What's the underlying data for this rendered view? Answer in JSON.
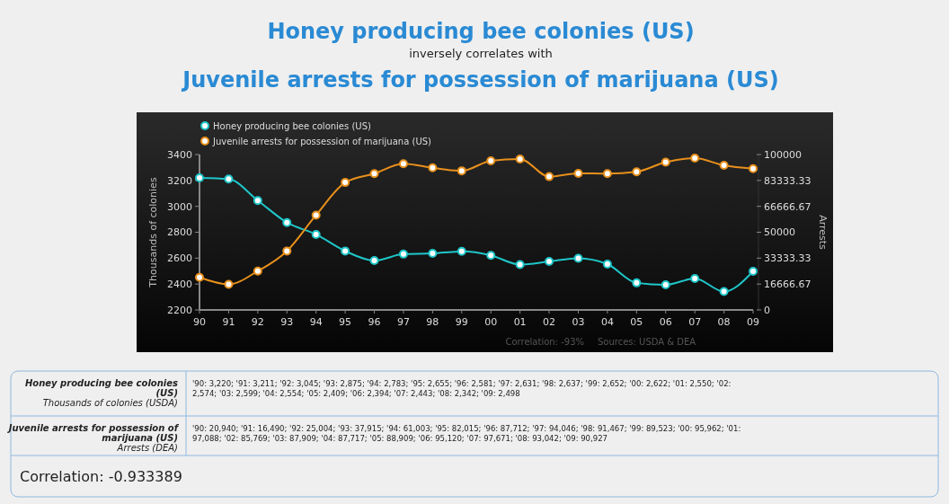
{
  "chart_data": {
    "type": "line",
    "title": "Honey producing bee colonies (US)",
    "subtitle": "inversely correlates with",
    "ylabel": "Thousands of colonies",
    "y2label": "Arrests",
    "categories": [
      "90",
      "91",
      "92",
      "93",
      "94",
      "95",
      "96",
      "97",
      "98",
      "99",
      "00",
      "01",
      "02",
      "03",
      "04",
      "05",
      "06",
      "07",
      "08",
      "09"
    ],
    "series": [
      {
        "name": "Honey producing bee colonies (US)",
        "color": "#1fc6c9",
        "values": [
          3220,
          3211,
          3045,
          2875,
          2783,
          2655,
          2581,
          2631,
          2637,
          2652,
          2622,
          2550,
          2574,
          2599,
          2554,
          2409,
          2394,
          2443,
          2342,
          2498
        ]
      },
      {
        "name": "Juvenile arrests for possession of marijuana (US)",
        "color": "#e8901c",
        "axis": "y2",
        "values": [
          20940,
          16490,
          25004,
          37915,
          61003,
          82015,
          87712,
          94046,
          91467,
          89523,
          95962,
          97088,
          85769,
          87909,
          87717,
          88909,
          95120,
          97671,
          93042,
          90927
        ]
      }
    ],
    "ylim": [
      2200,
      3400
    ],
    "yticks": [
      2200,
      2400,
      2600,
      2800,
      3000,
      3200,
      3400
    ],
    "y2lim": [
      0,
      100000
    ],
    "y2ticks": [
      0,
      {
        "value": 16666.67,
        "label": "16666.67"
      },
      {
        "value": 33333.33,
        "label": "33333.33"
      },
      50000,
      {
        "value": 66666.67,
        "label": "66666.67"
      },
      {
        "value": 83333.33,
        "label": "83333.33"
      },
      100000
    ],
    "marker": "circle",
    "legend": "top left",
    "grid": false,
    "annotations": [
      "Juvenile arrests for possession of marijuana (US)",
      "Correlation: -93%",
      "Sources: USDA & DEA",
      "Thousands of colonies (USDA)",
      "Arrests (DEA)",
      "Correlation: -0.933389",
      "'90: 3,220; '91: 3,211; '92: 3,045; '93: 2,875; '94: 2,783; '95: 2,655; '96: 2,581; '97: 2,631; '98: 2,637; '99: 2,652; '00: 2,622; '01: 2,550; '02: 2,574; '03: 2,599; '04: 2,554; '05: 2,409; '06: 2,394; '07: 2,443; '08: 2,342; '09: 2,498",
      "'90: 20,940; '91: 16,490; '92: 25,004; '93: 37,915; '94: 61,003; '95: 82,015; '96: 87,712; '97: 94,046; '98: 91,467; '99: 89,523; '00: 95,962; '01: 97,088; '02: 85,769; '03: 87,909; '04: 87,717; '05: 88,909; '06: 95,120; '07: 97,671; '08: 93,042; '09: 90,927"
    ]
  }
}
